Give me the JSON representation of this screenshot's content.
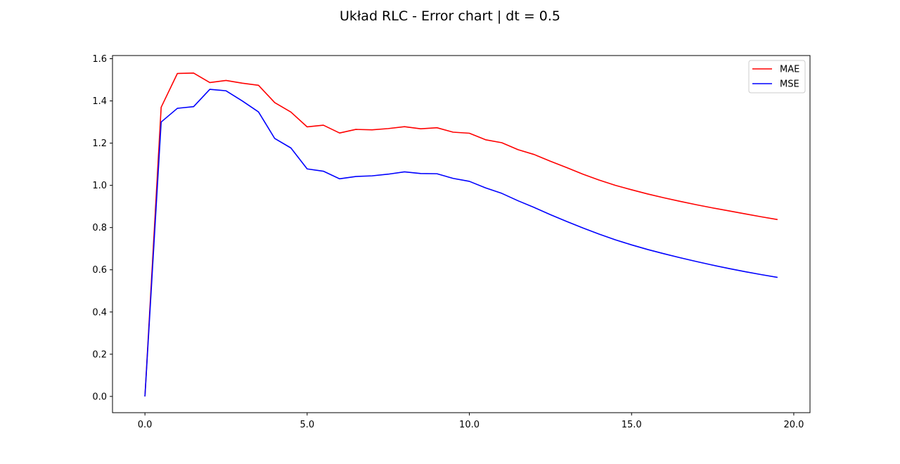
{
  "chart_data": {
    "type": "line",
    "title": "Układ RLC - Error chart | dt = 0.5",
    "xlabel": "",
    "ylabel": "",
    "xlim": [
      -1.0,
      20.5
    ],
    "ylim": [
      -0.077,
      1.615
    ],
    "x_ticks": [
      0.0,
      5.0,
      10.0,
      15.0,
      20.0
    ],
    "x_tick_labels": [
      "0.0",
      "5.0",
      "10.0",
      "15.0",
      "20.0"
    ],
    "y_ticks": [
      0.0,
      0.2,
      0.4,
      0.6,
      0.8,
      1.0,
      1.2,
      1.4,
      1.6
    ],
    "y_tick_labels": [
      "0.0",
      "0.2",
      "0.4",
      "0.6",
      "0.8",
      "1.0",
      "1.2",
      "1.4",
      "1.6"
    ],
    "grid": false,
    "legend_position": "top-right",
    "x": [
      0.0,
      0.5,
      1.0,
      1.5,
      2.0,
      2.5,
      3.0,
      3.5,
      4.0,
      4.5,
      5.0,
      5.5,
      6.0,
      6.5,
      7.0,
      7.5,
      8.0,
      8.5,
      9.0,
      9.5,
      10.0,
      10.5,
      11.0,
      11.5,
      12.0,
      12.5,
      13.0,
      13.5,
      14.0,
      14.5,
      15.0,
      15.5,
      16.0,
      16.5,
      17.0,
      17.5,
      18.0,
      18.5,
      19.0,
      19.5
    ],
    "series": [
      {
        "name": "MAE",
        "color": "#ff0000",
        "values": [
          0.0,
          1.37,
          1.53,
          1.532,
          1.487,
          1.497,
          1.484,
          1.474,
          1.392,
          1.347,
          1.277,
          1.285,
          1.248,
          1.265,
          1.263,
          1.269,
          1.278,
          1.268,
          1.273,
          1.252,
          1.247,
          1.216,
          1.202,
          1.169,
          1.146,
          1.114,
          1.084,
          1.053,
          1.025,
          1.0,
          0.979,
          0.959,
          0.941,
          0.924,
          0.908,
          0.893,
          0.879,
          0.865,
          0.851,
          0.838
        ]
      },
      {
        "name": "MSE",
        "color": "#0000ff",
        "values": [
          0.0,
          1.3,
          1.365,
          1.373,
          1.455,
          1.448,
          1.4,
          1.348,
          1.222,
          1.177,
          1.078,
          1.067,
          1.031,
          1.042,
          1.045,
          1.053,
          1.064,
          1.056,
          1.055,
          1.033,
          1.019,
          0.988,
          0.962,
          0.927,
          0.895,
          0.861,
          0.829,
          0.798,
          0.769,
          0.742,
          0.718,
          0.696,
          0.676,
          0.657,
          0.639,
          0.622,
          0.606,
          0.591,
          0.577,
          0.564
        ]
      }
    ]
  }
}
